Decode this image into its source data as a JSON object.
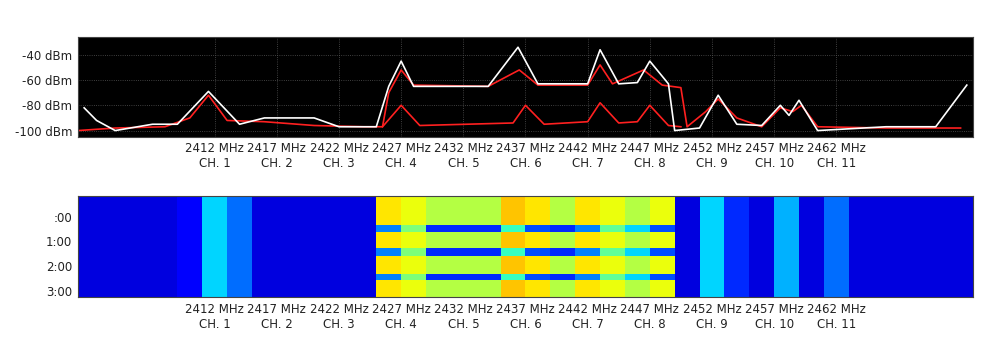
{
  "chart_data": [
    {
      "type": "line",
      "xlim": [
        2401,
        2473
      ],
      "ylim": [
        -105,
        -26
      ],
      "grid": true,
      "xticks": [
        {
          "value": 2412,
          "label": "2412 MHz\nCH. 1"
        },
        {
          "value": 2417,
          "label": "2417 MHz\nCH. 2"
        },
        {
          "value": 2422,
          "label": "2422 MHz\nCH. 3"
        },
        {
          "value": 2427,
          "label": "2427 MHz\nCH. 4"
        },
        {
          "value": 2432,
          "label": "2432 MHz\nCH. 5"
        },
        {
          "value": 2437,
          "label": "2437 MHz\nCH. 6"
        },
        {
          "value": 2442,
          "label": "2442 MHz\nCH. 7"
        },
        {
          "value": 2447,
          "label": "2447 MHz\nCH. 8"
        },
        {
          "value": 2452,
          "label": "2452 MHz\nCH. 9"
        },
        {
          "value": 2457,
          "label": "2457 MHz\nCH. 10"
        },
        {
          "value": 2462,
          "label": "2462 MHz\nCH. 11"
        }
      ],
      "yticks": [
        {
          "value": -40,
          "label": "-40 dBm"
        },
        {
          "value": -60,
          "label": "-60 dBm"
        },
        {
          "value": -80,
          "label": "-80 dBm"
        },
        {
          "value": -100,
          "label": "-100 dBm"
        }
      ],
      "series": [
        {
          "color": "#ff2020",
          "x": [
            2425.5,
            2427,
            2428.5,
            2436,
            2437,
            2438.5,
            2442,
            2443,
            2444.5,
            2446,
            2447,
            2448.5,
            2449.5
          ],
          "values": [
            -97,
            -80,
            -96,
            -94,
            -80,
            -95,
            -93,
            -78,
            -94,
            -93,
            -80,
            -96,
            -97
          ]
        },
        {
          "color": "#ff2020",
          "x": [
            2401,
            2404,
            2408,
            2410,
            2411.5,
            2413,
            2416,
            2420,
            2424,
            2425.5,
            2426,
            2427,
            2428,
            2434,
            2436.5,
            2438,
            2442,
            2443,
            2444,
            2446.5,
            2448,
            2449.5,
            2450,
            2451.5,
            2452.5,
            2454,
            2456,
            2457.5,
            2458.5,
            2459.2,
            2460.5,
            2466,
            2472
          ],
          "values": [
            -100,
            -98,
            -97,
            -90,
            -72,
            -92,
            -93,
            -96,
            -97,
            -97,
            -70,
            -52,
            -64,
            -65,
            -52,
            -64,
            -64,
            -48,
            -63,
            -52,
            -64,
            -66,
            -97,
            -85,
            -75,
            -90,
            -97,
            -82,
            -85,
            -80,
            -97,
            -98,
            -98
          ]
        },
        {
          "color": "#ffffff",
          "x": [
            2401.5,
            2402.5,
            2404,
            2407,
            2409,
            2411.5,
            2414,
            2416,
            2420,
            2422,
            2425,
            2426,
            2427,
            2428,
            2434,
            2436.4,
            2438,
            2442,
            2443,
            2444.5,
            2446,
            2447,
            2448.5,
            2449,
            2451,
            2452.5,
            2454,
            2456,
            2457.5,
            2458.2,
            2459,
            2460.5,
            2466,
            2470,
            2472.5
          ],
          "values": [
            -82,
            -92,
            -100,
            -95,
            -95,
            -69,
            -95,
            -90,
            -90,
            -97,
            -97,
            -65,
            -45,
            -65,
            -65,
            -34,
            -63,
            -63,
            -36,
            -63,
            -62,
            -45,
            -63,
            -100,
            -98,
            -72,
            -95,
            -96,
            -80,
            -88,
            -76,
            -100,
            -97,
            -97,
            -64
          ]
        }
      ]
    },
    {
      "type": "heatmap",
      "xlim": [
        2401,
        2473
      ],
      "ylim": [
        3.25,
        -0.85
      ],
      "xticks": [
        {
          "value": 2412,
          "label": "2412 MHz\nCH. 1"
        },
        {
          "value": 2417,
          "label": "2417 MHz\nCH. 2"
        },
        {
          "value": 2422,
          "label": "2422 MHz\nCH. 3"
        },
        {
          "value": 2427,
          "label": "2427 MHz\nCH. 4"
        },
        {
          "value": 2432,
          "label": "2432 MHz\nCH. 5"
        },
        {
          "value": 2437,
          "label": "2437 MHz\nCH. 6"
        },
        {
          "value": 2442,
          "label": "2442 MHz\nCH. 7"
        },
        {
          "value": 2447,
          "label": "2447 MHz\nCH. 8"
        },
        {
          "value": 2452,
          "label": "2452 MHz\nCH. 9"
        },
        {
          "value": 2457,
          "label": "2457 MHz\nCH. 10"
        },
        {
          "value": 2462,
          "label": "2462 MHz\nCH. 11"
        }
      ],
      "yticks": [
        {
          "value": 0,
          "label": ":00"
        },
        {
          "value": 1,
          "label": "1:00"
        },
        {
          "value": 2,
          "label": "2:00"
        },
        {
          "value": 3,
          "label": "3:00"
        }
      ],
      "color_range": [
        -100,
        -40
      ],
      "freq_edges": [
        2401,
        2403,
        2405,
        2407,
        2409,
        2411,
        2413,
        2415,
        2417,
        2419,
        2421,
        2423,
        2425,
        2427,
        2429,
        2431,
        2433,
        2435,
        2437,
        2439,
        2441,
        2443,
        2445,
        2447,
        2449,
        2451,
        2453,
        2455,
        2457,
        2459,
        2461,
        2463,
        2465,
        2467,
        2469,
        2471,
        2473
      ],
      "time_edges": [
        -0.85,
        0.32,
        0.6,
        1.26,
        1.58,
        2.3,
        2.56,
        3.25
      ],
      "cells": [
        [
          -95,
          -95,
          -95,
          -95,
          -93,
          -80,
          -86,
          -95,
          -95,
          -95,
          -95,
          -95,
          -60,
          -62,
          -66,
          -66,
          -66,
          -58,
          -60,
          -66,
          -60,
          -62,
          -66,
          -62,
          -95,
          -80,
          -90,
          -95,
          -82,
          -95,
          -86,
          -95,
          -95,
          -95,
          -95,
          -95
        ],
        [
          -95,
          -95,
          -95,
          -95,
          -93,
          -80,
          -86,
          -95,
          -95,
          -95,
          -95,
          -95,
          -85,
          -70,
          -90,
          -90,
          -90,
          -75,
          -88,
          -90,
          -85,
          -72,
          -80,
          -88,
          -95,
          -80,
          -90,
          -95,
          -82,
          -95,
          -86,
          -95,
          -95,
          -95,
          -95,
          -95
        ],
        [
          -95,
          -95,
          -95,
          -95,
          -93,
          -80,
          -86,
          -95,
          -95,
          -95,
          -95,
          -95,
          -60,
          -62,
          -66,
          -66,
          -66,
          -58,
          -60,
          -66,
          -60,
          -62,
          -66,
          -62,
          -95,
          -80,
          -90,
          -95,
          -82,
          -95,
          -86,
          -95,
          -95,
          -95,
          -95,
          -95
        ],
        [
          -95,
          -95,
          -95,
          -95,
          -93,
          -80,
          -86,
          -95,
          -95,
          -95,
          -95,
          -95,
          -85,
          -70,
          -90,
          -90,
          -90,
          -75,
          -88,
          -90,
          -85,
          -72,
          -80,
          -88,
          -95,
          -80,
          -90,
          -95,
          -82,
          -95,
          -86,
          -95,
          -95,
          -95,
          -95,
          -95
        ],
        [
          -95,
          -95,
          -95,
          -95,
          -93,
          -80,
          -86,
          -95,
          -95,
          -95,
          -95,
          -95,
          -60,
          -62,
          -66,
          -66,
          -66,
          -58,
          -60,
          -66,
          -60,
          -62,
          -66,
          -62,
          -95,
          -80,
          -90,
          -95,
          -82,
          -95,
          -86,
          -95,
          -95,
          -95,
          -95,
          -95
        ],
        [
          -95,
          -95,
          -95,
          -95,
          -93,
          -80,
          -86,
          -95,
          -95,
          -95,
          -95,
          -95,
          -85,
          -70,
          -90,
          -90,
          -90,
          -75,
          -88,
          -90,
          -85,
          -72,
          -80,
          -88,
          -95,
          -80,
          -90,
          -95,
          -82,
          -95,
          -86,
          -95,
          -95,
          -95,
          -95,
          -95
        ],
        [
          -95,
          -95,
          -95,
          -95,
          -93,
          -80,
          -86,
          -95,
          -95,
          -95,
          -95,
          -95,
          -60,
          -62,
          -66,
          -66,
          -66,
          -58,
          -60,
          -66,
          -60,
          -62,
          -66,
          -62,
          -95,
          -80,
          -90,
          -95,
          -82,
          -95,
          -86,
          -95,
          -95,
          -95,
          -95,
          -95
        ]
      ]
    }
  ]
}
